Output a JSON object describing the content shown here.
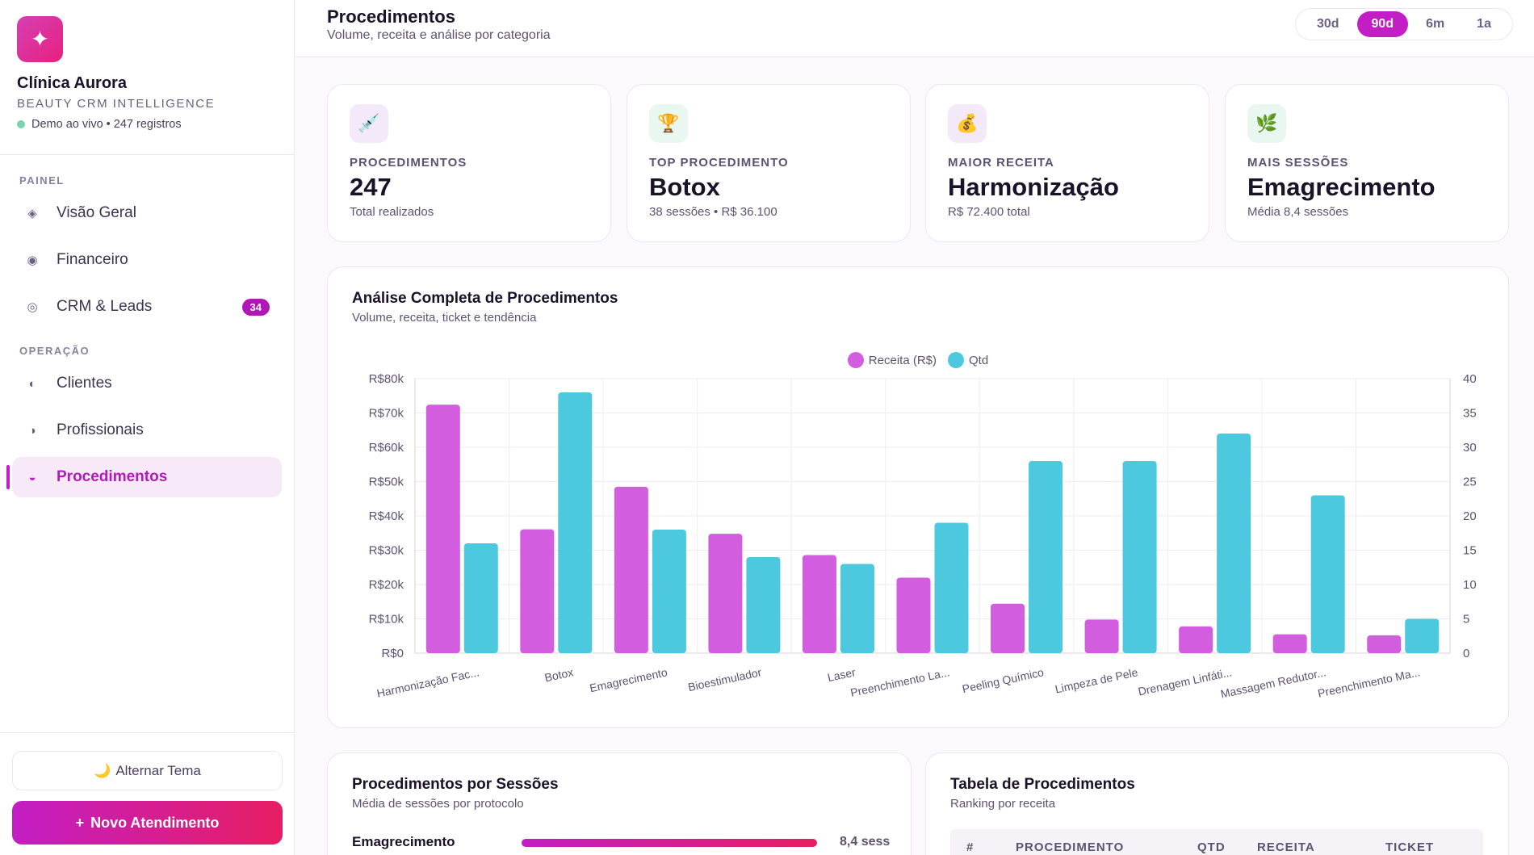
{
  "sidebar": {
    "logo_glyph": "✦",
    "brand_name": "Clínica Aurora",
    "brand_sub": "BEAUTY CRM INTELLIGENCE",
    "live_text": "Demo ao vivo • 247 registros",
    "section_painel": "PAINEL",
    "section_operacao": "OPERAÇÃO",
    "items": [
      {
        "label": "Visão Geral",
        "icon": "diamond-icon",
        "glyph": "◈"
      },
      {
        "label": "Financeiro",
        "icon": "target-icon",
        "glyph": "◉"
      },
      {
        "label": "CRM & Leads",
        "icon": "ring-icon",
        "glyph": "◎",
        "badge": "34"
      },
      {
        "label": "Clientes",
        "icon": "half-circle-icon",
        "glyph": "◐"
      },
      {
        "label": "Profissionais",
        "icon": "half-circle-right-icon",
        "glyph": "◑"
      },
      {
        "label": "Procedimentos",
        "icon": "half-circle-bottom-icon",
        "glyph": "◒"
      }
    ],
    "theme_label": "Alternar Tema",
    "theme_icon": "🌙",
    "new_label": "Novo Atendimento",
    "new_icon": "+"
  },
  "header": {
    "title": "Procedimentos",
    "subtitle": "Volume, receita e análise por categoria",
    "periods": [
      "30d",
      "90d",
      "6m",
      "1a"
    ],
    "active_period": "90d"
  },
  "kpis": [
    {
      "label": "PROCEDIMENTOS",
      "value": "247",
      "sub": "Total realizados",
      "icon": "syringe-icon",
      "glyph": "💉",
      "bg": "#f3e9f9"
    },
    {
      "label": "TOP PROCEDIMENTO",
      "value": "Botox",
      "sub": "38 sessões • R$ 36.100",
      "icon": "trophy-icon",
      "glyph": "🏆",
      "bg": "#e8f7ef"
    },
    {
      "label": "MAIOR RECEITA",
      "value": "Harmonização",
      "sub": "R$ 72.400 total",
      "icon": "money-bag-icon",
      "glyph": "💰",
      "bg": "#f3e9f9"
    },
    {
      "label": "MAIS SESSÕES",
      "value": "Emagrecimento",
      "sub": "Média 8,4 sessões",
      "icon": "herb-icon",
      "glyph": "🌿",
      "bg": "#e8f7ef"
    }
  ],
  "analysis": {
    "title": "Análise Completa de Procedimentos",
    "subtitle": "Volume, receita, ticket e tendência"
  },
  "chart_data": {
    "type": "bar",
    "categories": [
      "Harmonização Fac...",
      "Botox",
      "Emagrecimento",
      "Bioestimulador",
      "Laser",
      "Preenchimento La...",
      "Peeling Químico",
      "Limpeza de Pele",
      "Drenagem Linfáti...",
      "Massagem Redutor...",
      "Preenchimento Ma..."
    ],
    "series": [
      {
        "name": "Receita (R$)",
        "axis": "left",
        "color": "#d35ddf",
        "values": [
          72400,
          36100,
          48500,
          34800,
          28600,
          22000,
          14400,
          9800,
          7800,
          5500,
          5200
        ]
      },
      {
        "name": "Qtd",
        "axis": "right",
        "color": "#4cc9df",
        "values": [
          16,
          38,
          18,
          14,
          13,
          19,
          28,
          28,
          32,
          23,
          5
        ]
      }
    ],
    "left_ticks": [
      "R$0",
      "R$10k",
      "R$20k",
      "R$30k",
      "R$40k",
      "R$50k",
      "R$60k",
      "R$70k",
      "R$80k"
    ],
    "right_ticks": [
      "0",
      "5",
      "10",
      "15",
      "20",
      "25",
      "30",
      "35",
      "40"
    ],
    "ylim_left": [
      0,
      80000
    ],
    "ylim_right": [
      0,
      40
    ],
    "legend": "top-center",
    "grid": true
  },
  "sessions": {
    "title": "Procedimentos por Sessões",
    "subtitle": "Média de sessões por protocolo",
    "rows": [
      {
        "name": "Emagrecimento",
        "value": "8,4 sess",
        "fraction": 1.0
      }
    ]
  },
  "table": {
    "title": "Tabela de Procedimentos",
    "subtitle": "Ranking por receita",
    "headers": [
      "#",
      "PROCEDIMENTO",
      "QTD",
      "RECEITA",
      "TICKET"
    ]
  }
}
